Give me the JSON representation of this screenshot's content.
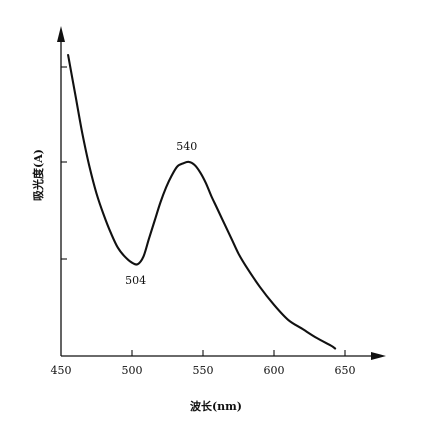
{
  "chart_data": {
    "type": "line",
    "title": "",
    "xlabel": "波长(nm)",
    "ylabel": "吸光度(A)",
    "xlim": [
      450,
      650
    ],
    "x_ticks": [
      "450",
      "500",
      "550",
      "600",
      "650"
    ],
    "y_ticks_count": 3,
    "grid": false,
    "legend": "none",
    "series": [
      {
        "x": [
          455,
          460,
          465,
          470,
          475,
          480,
          485,
          490,
          495,
          500,
          504,
          508,
          512,
          516,
          520,
          524,
          528,
          532,
          536,
          540,
          544,
          548,
          552,
          556,
          560,
          565,
          570,
          575,
          580,
          590,
          600,
          610,
          620,
          630,
          640,
          643
        ],
        "y": [
          1.0,
          0.87,
          0.74,
          0.63,
          0.54,
          0.47,
          0.41,
          0.36,
          0.33,
          0.31,
          0.305,
          0.33,
          0.39,
          0.45,
          0.51,
          0.56,
          0.6,
          0.63,
          0.64,
          0.645,
          0.635,
          0.61,
          0.575,
          0.53,
          0.49,
          0.44,
          0.39,
          0.34,
          0.3,
          0.23,
          0.17,
          0.12,
          0.09,
          0.06,
          0.035,
          0.025
        ]
      }
    ],
    "annotations": [
      {
        "label": "540",
        "x": 540,
        "y": 0.645
      },
      {
        "label": "504",
        "x": 504,
        "y": 0.305
      }
    ]
  }
}
